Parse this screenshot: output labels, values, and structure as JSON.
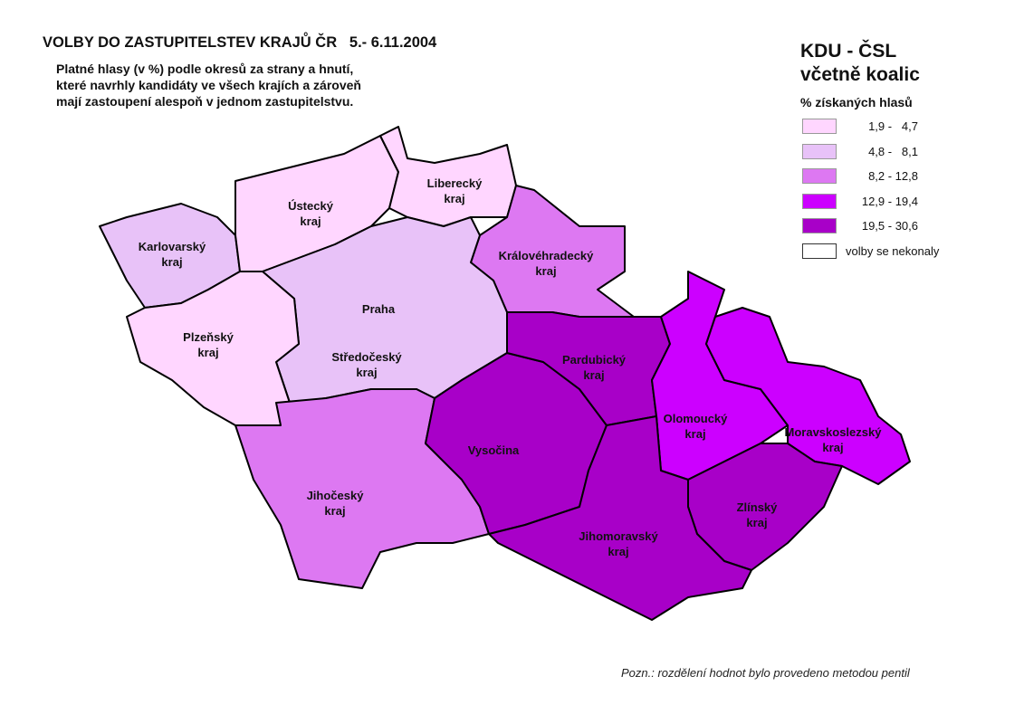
{
  "title": "VOLBY DO ZASTUPITELSTEV KRAJŮ ČR   5.- 6.11.2004",
  "subtitle": [
    "Platné hlasy (v %) podle okresů za strany a hnutí,",
    "které navrhly kandidáty ve všech krajích a zároveň",
    "mají zastoupení alespoň v jednom zastupitelstvu."
  ],
  "legend": {
    "party": [
      "KDU - ČSL",
      "včetně koalic"
    ],
    "heading": "% získaných hlasů",
    "classes": [
      {
        "label": "1,9 -   4,7",
        "color": "#ffd6ff"
      },
      {
        "label": "4,8 -   8,1",
        "color": "#e8c2f8"
      },
      {
        "label": "8,2 - 12,8",
        "color": "#dd78f2"
      },
      {
        "label": "12,9 - 19,4",
        "color": "#cc00ff"
      },
      {
        "label": "19,5 - 30,6",
        "color": "#a800c8"
      },
      {
        "label": "volby se nekonaly",
        "color": "#ffffff"
      }
    ]
  },
  "regions": [
    {
      "name": "Karlovarský kraj",
      "lines": [
        "Karlovarský",
        "kraj"
      ],
      "class": 1
    },
    {
      "name": "Ústecký kraj",
      "lines": [
        "Ústecký",
        "kraj"
      ],
      "class": 0
    },
    {
      "name": "Liberecký kraj",
      "lines": [
        "Liberecký",
        "kraj"
      ],
      "class": 0
    },
    {
      "name": "Královéhradecký kraj",
      "lines": [
        "Královéhradecký",
        "kraj"
      ],
      "class": 2
    },
    {
      "name": "Praha",
      "lines": [
        "Praha"
      ],
      "class": 5
    },
    {
      "name": "Středočeský kraj",
      "lines": [
        "Středočeský",
        "kraj"
      ],
      "class": 1
    },
    {
      "name": "Plzeňský kraj",
      "lines": [
        "Plzeňský",
        "kraj"
      ],
      "class": 0
    },
    {
      "name": "Jihočeský kraj",
      "lines": [
        "Jihočeský",
        "kraj"
      ],
      "class": 2
    },
    {
      "name": "Vysočina",
      "lines": [
        "Vysočina"
      ],
      "class": 4
    },
    {
      "name": "Pardubický kraj",
      "lines": [
        "Pardubický",
        "kraj"
      ],
      "class": 4
    },
    {
      "name": "Olomoucký kraj",
      "lines": [
        "Olomoucký",
        "kraj"
      ],
      "class": 3
    },
    {
      "name": "Moravskoslezský kraj",
      "lines": [
        "Moravskoslezský",
        "kraj"
      ],
      "class": 3
    },
    {
      "name": "Zlínský kraj",
      "lines": [
        "Zlínský",
        "kraj"
      ],
      "class": 4
    },
    {
      "name": "Jihomoravský kraj",
      "lines": [
        "Jihomoravský",
        "kraj"
      ],
      "class": 4
    }
  ],
  "note": "Pozn.: rozdělení hodnot bylo provedeno metodou pentil"
}
